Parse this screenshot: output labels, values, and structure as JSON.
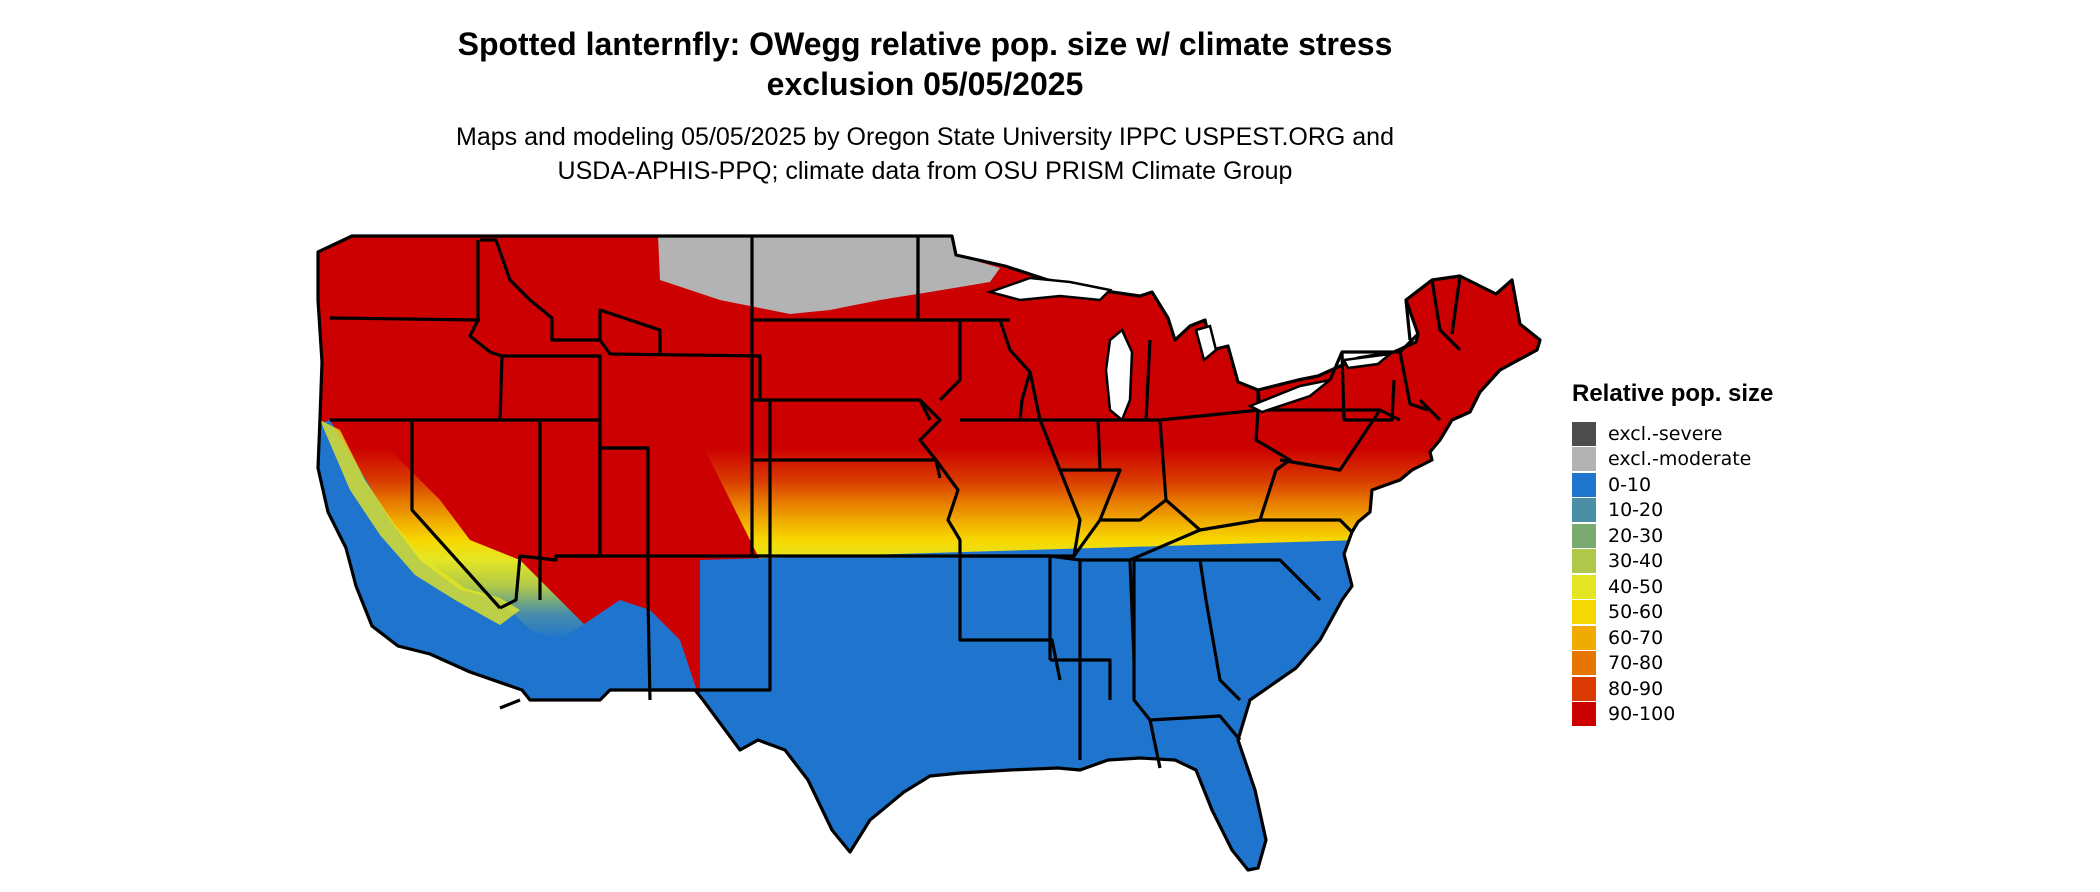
{
  "title": {
    "line1": "Spotted lanternfly: OWegg relative pop. size w/ climate stress",
    "line2": "exclusion 05/05/2025"
  },
  "subtitle": {
    "line1": "Maps and modeling 05/05/2025 by Oregon State University IPPC USPEST.ORG and",
    "line2": "USDA-APHIS-PPQ; climate data from OSU PRISM Climate Group"
  },
  "legend": {
    "title": "Relative pop. size",
    "items": [
      {
        "label": "excl.-severe",
        "color": "#4d4d4d"
      },
      {
        "label": "excl.-moderate",
        "color": "#b3b3b3"
      },
      {
        "label": "0-10",
        "color": "#1f75cd"
      },
      {
        "label": "10-20",
        "color": "#4a8fa6"
      },
      {
        "label": "20-30",
        "color": "#7aaa72"
      },
      {
        "label": "30-40",
        "color": "#afc94a"
      },
      {
        "label": "40-50",
        "color": "#e4e624"
      },
      {
        "label": "50-60",
        "color": "#f7d800"
      },
      {
        "label": "60-70",
        "color": "#f0aa00"
      },
      {
        "label": "70-80",
        "color": "#e67600"
      },
      {
        "label": "80-90",
        "color": "#d93b00"
      },
      {
        "label": "90-100",
        "color": "#cc0000"
      }
    ]
  },
  "map": {
    "region": "Contiguous United States",
    "colors": {
      "high": "#cc0000",
      "low": "#1f75cd",
      "excluded": "#b3b3b3",
      "border": "#000000"
    }
  }
}
